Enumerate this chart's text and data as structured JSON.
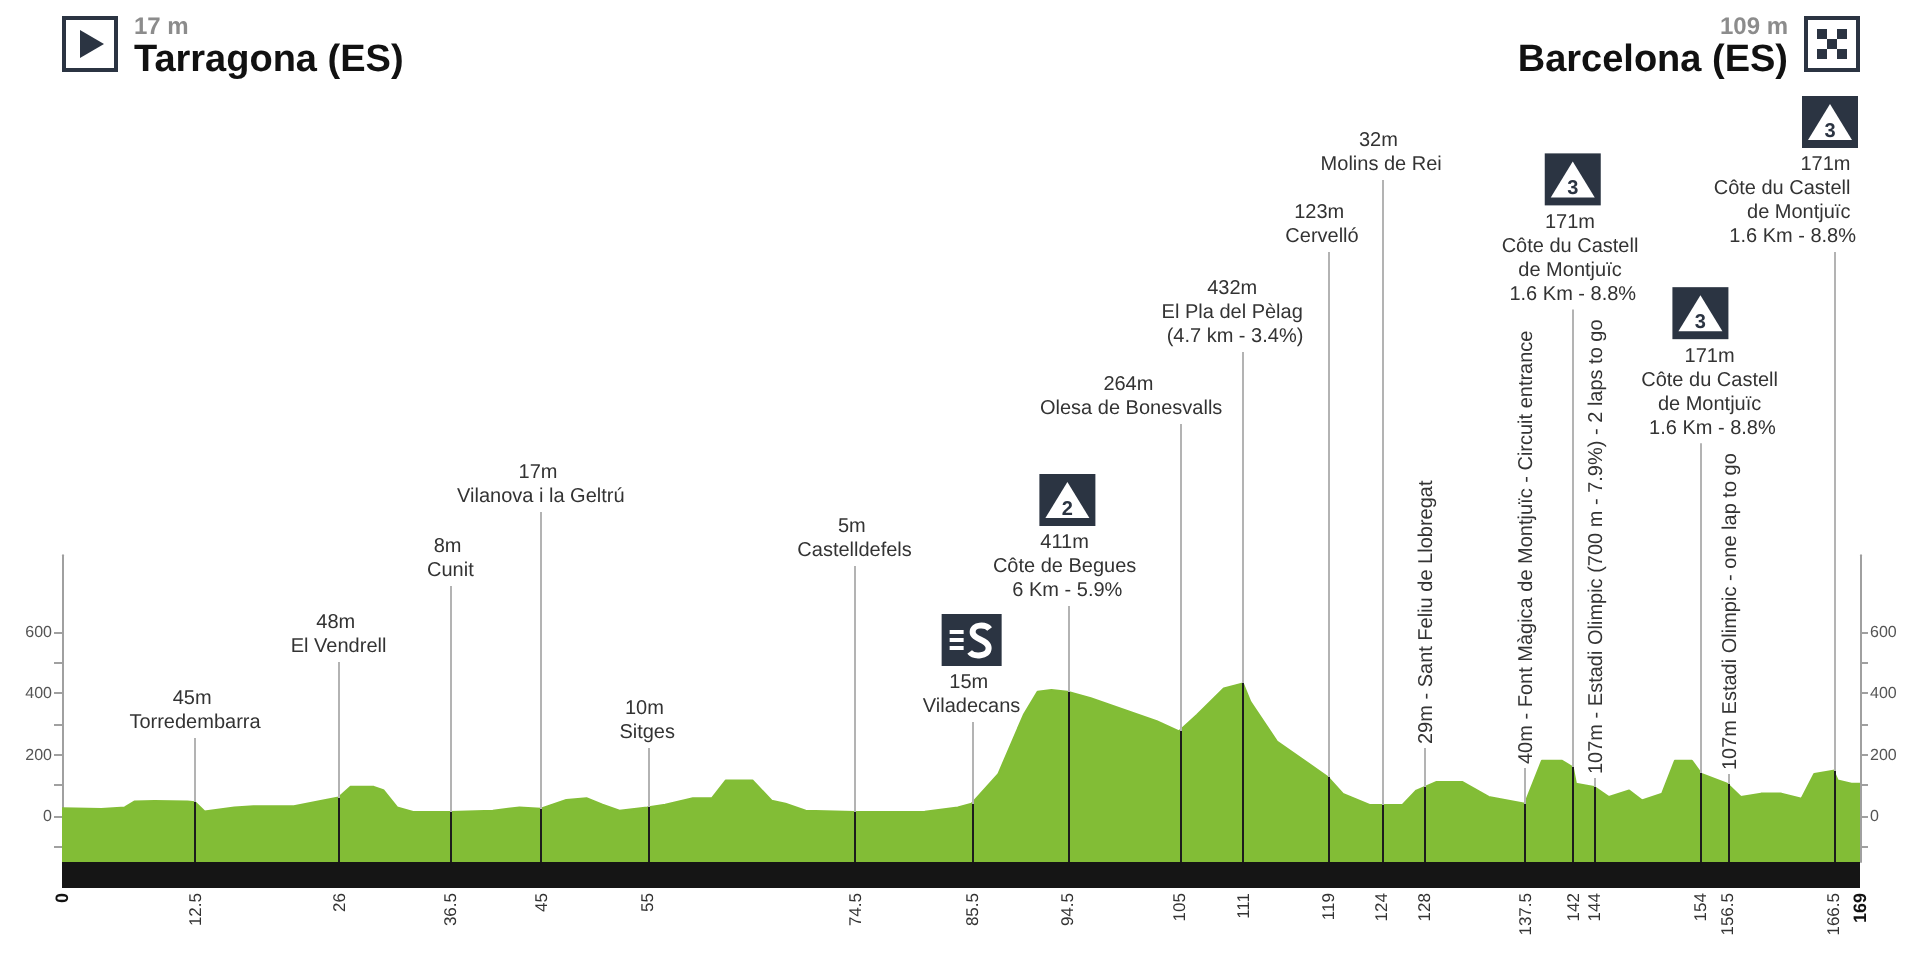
{
  "chart_data": {
    "type": "area",
    "x": [
      0,
      3.7,
      5.9,
      6.8,
      8.7,
      11.8,
      12.5,
      13.4,
      16.2,
      18,
      21.8,
      24.3,
      26,
      27.1,
      29.3,
      30.2,
      31.5,
      33,
      36.5,
      40.5,
      43,
      45,
      47.4,
      49.3,
      50.8,
      52.4,
      55,
      56.7,
      59.3,
      61.1,
      62.4,
      64.9,
      66.7,
      68,
      69.9,
      74.5,
      81.1,
      84.2,
      85.5,
      88,
      90.4,
      91.7,
      93,
      94.5,
      96.7,
      99.8,
      102.9,
      105,
      106.7,
      109.2,
      111,
      111.7,
      114.2,
      117.3,
      119,
      120.4,
      122.9,
      126,
      127.3,
      129.2,
      131.6,
      134.1,
      137.5,
      139.1,
      141,
      142,
      142.3,
      144,
      145.4,
      147.3,
      148.5,
      150.4,
      151.6,
      153.2,
      154.1,
      156.5,
      157.8,
      159.7,
      161.6,
      163.5,
      164.7,
      166.5,
      166.9,
      168.2,
      169
    ],
    "values": [
      25,
      23,
      28,
      47,
      49,
      47,
      45,
      15,
      28,
      32,
      32,
      49,
      60,
      95,
      95,
      84,
      28,
      13,
      13,
      17,
      28,
      24,
      52,
      58,
      37,
      17,
      28,
      37,
      58,
      58,
      116,
      116,
      50,
      40,
      17,
      13,
      14,
      28,
      40,
      136,
      330,
      405,
      411,
      405,
      384,
      347,
      309,
      276,
      330,
      416,
      432,
      372,
      243,
      168,
      126,
      72,
      36,
      36,
      83,
      111,
      111,
      62,
      40,
      180,
      180,
      159,
      105,
      95,
      62,
      83,
      51,
      73,
      180,
      180,
      137,
      105,
      62,
      73,
      73,
      56,
      137,
      148,
      116,
      105,
      105
    ],
    "color": "#82bd36",
    "xlim": [
      0,
      169
    ],
    "xticks": [
      0,
      12.5,
      26,
      36.5,
      45,
      55,
      74.5,
      85.5,
      94.5,
      105,
      111,
      119,
      124,
      128,
      137.5,
      142,
      144,
      154,
      156.5,
      166.5,
      169
    ],
    "ylim": [
      -150,
      850
    ],
    "yticks": [
      {
        "value": -100,
        "label": null
      },
      0,
      {
        "value": 100,
        "label": null
      },
      200,
      {
        "value": 300,
        "label": null
      },
      400,
      {
        "value": 500,
        "label": null
      },
      600
    ],
    "y2lim": [
      -150,
      850
    ],
    "y2ticks": [
      {
        "value": -100,
        "label": null
      },
      0,
      {
        "value": 100,
        "label": null
      },
      200,
      {
        "value": 300,
        "label": null
      },
      400,
      {
        "value": 500,
        "label": null
      },
      600
    ],
    "bands": [
      {
        "axis": "y",
        "from": -150,
        "to": 0,
        "color": "#82bd36"
      }
    ],
    "ref_lines": [
      {
        "axis": "x",
        "value": 12.5,
        "label": "45m\nTorredembarra"
      },
      {
        "axis": "x",
        "value": 26,
        "label": "48m\nEl Vendrell"
      },
      {
        "axis": "x",
        "value": 36.5,
        "label": "8m\nCunit"
      },
      {
        "axis": "x",
        "value": 45,
        "label": "17m\nVilanova i la Geltrú"
      },
      {
        "axis": "x",
        "value": 55,
        "label": "10m\nSitges"
      },
      {
        "axis": "x",
        "value": 74.5,
        "label": "5m\nCastelldefels"
      },
      {
        "axis": "x",
        "value": 85.5,
        "label": "15m\nViladecans"
      },
      {
        "axis": "x",
        "value": 94.5,
        "label": "411m\nCôte de Begues\n6 Km - 5.9%"
      },
      {
        "axis": "x",
        "value": 105,
        "label": "264m\nOlesa de Bonesvalls"
      },
      {
        "axis": "x",
        "value": 111,
        "label": "432m\nEl Pla del Pèlag\n(4.7 km - 3.4%)"
      },
      {
        "axis": "x",
        "value": 119,
        "label": "123m\nCervelló"
      },
      {
        "axis": "x",
        "value": 124,
        "label": "32m\nMolins de Rei"
      },
      {
        "axis": "x",
        "value": 128,
        "label": "29m - Sant Feliu de Llobregat"
      },
      {
        "axis": "x",
        "value": 137.5,
        "label": "40m - Font Màgica de Montjuïc - Circuit entrance"
      },
      {
        "axis": "x",
        "value": 142,
        "label": "171m\nCôte du Castell\nde Montjuïc\n1.6 Km - 8.8%"
      },
      {
        "axis": "x",
        "value": 144,
        "label": "107m - Estadi Olimpic (700 m - 7.9%) - 2 laps to go"
      },
      {
        "axis": "x",
        "value": 154,
        "label": "171m\nCôte du Castell\nde Montjuïc\n1.6 Km - 8.8%"
      },
      {
        "axis": "x",
        "value": 156.5,
        "label": "107m\nEstadi Olimpic - one\nlap to go"
      },
      {
        "axis": "x",
        "value": 166.5,
        "label": "171m\nCôte du Castell\nde Montjuïc\n1.6 Km - 8.8%"
      }
    ],
    "annotations": [
      "17 m",
      "Tarragona (ES)",
      "109 m",
      "Barcelona (ES)",
      "2",
      "3",
      "3",
      "3"
    ]
  }
}
